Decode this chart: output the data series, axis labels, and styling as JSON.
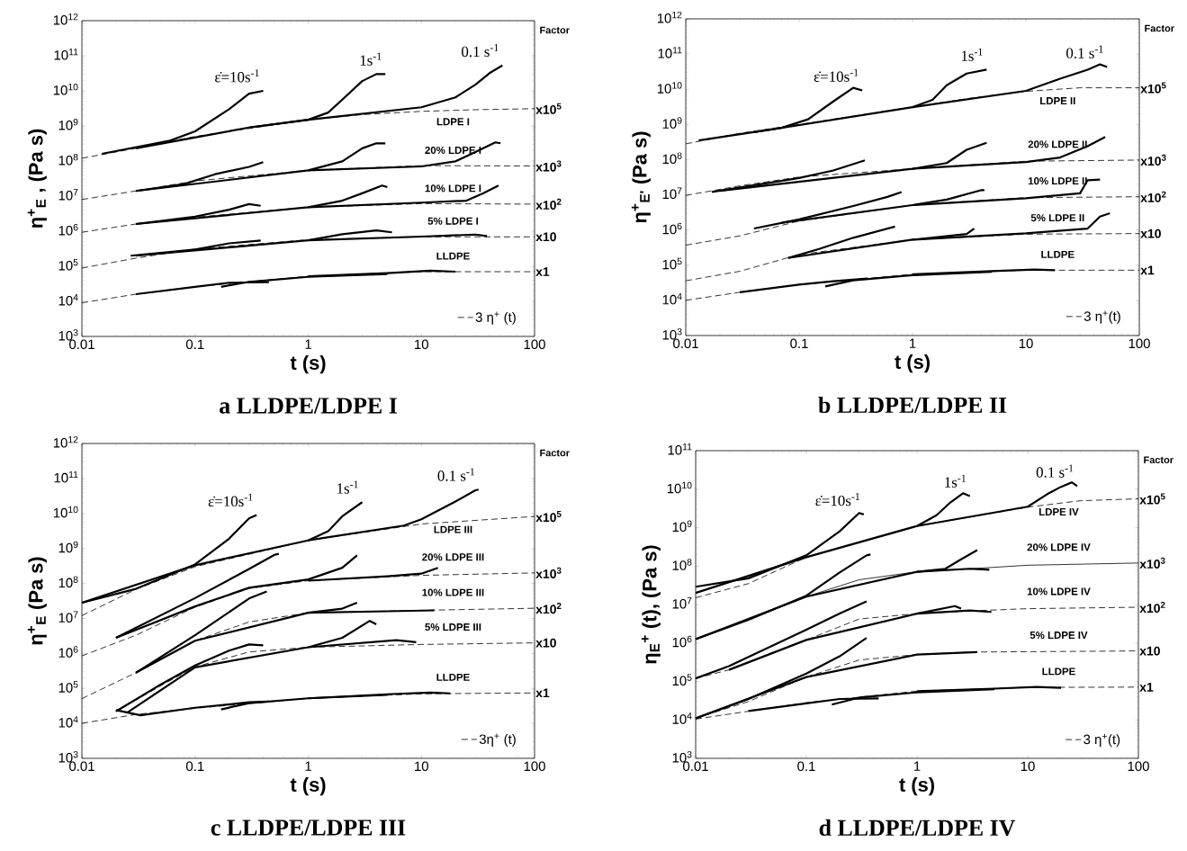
{
  "chart_data": [
    {
      "type": "line",
      "color": "#000000",
      "log": "xy",
      "legend": "bottom right",
      "title": "a  LLDPE/LDPE I",
      "xlabel": "t (s)",
      "ylabel": "η$^{+}$$_{E}$ , (Pa s)",
      "xlim": [
        0.01,
        100
      ],
      "ylim": [
        1000.0,
        1000000000000.0
      ],
      "xticks": [
        0.01,
        0.1,
        1,
        10,
        100
      ],
      "yticks": [
        {
          "value": 1000.0,
          "label": "10$^{3}$"
        },
        {
          "value": 10000.0,
          "label": "10$^{4}$"
        },
        {
          "value": 100000.0,
          "label": "10$^{5}$"
        },
        {
          "value": 1000000.0,
          "label": "10$^{6}$"
        },
        {
          "value": 10000000.0,
          "label": "10$^{7}$"
        },
        {
          "value": 100000000.0,
          "label": "10$^{8}$"
        },
        {
          "value": 1000000000.0,
          "label": "10$^{9}$"
        },
        {
          "value": 10000000000.0,
          "label": "10$^{10}$"
        },
        {
          "value": 100000000000.0,
          "label": "10$^{11}$"
        },
        {
          "value": 1000000000000.0,
          "label": "10$^{12}$"
        }
      ],
      "series": [
        {
          "name": "3 η$^{+}$ (t)",
          "line_style": "dashed",
          "x": [
            0.01,
            0.03,
            0.1,
            1,
            3,
            10,
            30,
            100
          ],
          "values": [
            120000000.0,
            230000000.0,
            500000000.0,
            1500000000.0,
            2100000000.0,
            2600000000.0,
            2900000000.0,
            3100000000.0
          ]
        },
        {
          "x": [
            0.015,
            0.06,
            0.1,
            0.2,
            0.3,
            0.4
          ],
          "values": [
            160000000.0,
            380000000.0,
            700000000.0,
            3000000000.0,
            8300000000.0,
            10000000000.0
          ]
        },
        {
          "x": [
            0.03,
            0.3,
            1,
            1.5,
            2,
            3,
            4,
            4.8
          ],
          "values": [
            230000000.0,
            900000000.0,
            1500000000.0,
            2400000000.0,
            5600000000.0,
            19000000000.0,
            30000000000.0,
            30000000000.0
          ]
        },
        {
          "x": [
            0.3,
            1,
            10,
            20,
            30,
            40,
            52
          ],
          "values": [
            900000000.0,
            1500000000.0,
            3400000000.0,
            6500000000.0,
            15000000000.0,
            32000000000.0,
            53000000000.0
          ]
        },
        {
          "line_style": "dashed",
          "x": [
            0.01,
            0.03,
            0.1,
            1,
            10,
            100
          ],
          "values": [
            8000000.0,
            14000000.0,
            27000000.0,
            54000000.0,
            74000000.0,
            72000000.0
          ]
        },
        {
          "x": [
            0.03,
            0.08,
            0.15,
            0.3,
            0.4
          ],
          "values": [
            14000000.0,
            22000000.0,
            42000000.0,
            68000000.0,
            93000000.0
          ]
        },
        {
          "x": [
            0.03,
            1,
            2,
            3,
            4,
            4.8
          ],
          "values": [
            14000000.0,
            54000000.0,
            98000000.0,
            230000000.0,
            320000000.0,
            320000000.0
          ]
        },
        {
          "x": [
            1,
            10,
            20,
            30,
            45,
            50
          ],
          "values": [
            54000000.0,
            70000000.0,
            98000000.0,
            180000000.0,
            340000000.0,
            320000000.0
          ]
        },
        {
          "line_style": "dashed",
          "x": [
            0.01,
            0.03,
            0.1,
            1,
            10,
            100
          ],
          "values": [
            930000.0,
            1600000.0,
            2500000.0,
            4800000.0,
            6100000.0,
            5900000.0
          ]
        },
        {
          "x": [
            0.03,
            0.1,
            0.2,
            0.3,
            0.38
          ],
          "values": [
            1600000.0,
            2600000.0,
            4100000.0,
            5900000.0,
            5300000.0
          ]
        },
        {
          "x": [
            0.03,
            1,
            2,
            3,
            4.5,
            5
          ],
          "values": [
            1600000.0,
            4800000.0,
            7400000.0,
            12000000.0,
            20000000.0,
            18000000.0
          ]
        },
        {
          "x": [
            1,
            10,
            25,
            35,
            48
          ],
          "values": [
            4800000.0,
            6500000.0,
            7400000.0,
            12000000.0,
            20000000.0
          ]
        },
        {
          "line_style": "dashed",
          "x": [
            0.01,
            0.03,
            0.1,
            1,
            10,
            100
          ],
          "values": [
            89000.0,
            170000.0,
            310000.0,
            570000.0,
            690000.0,
            690000.0
          ]
        },
        {
          "x": [
            0.027,
            0.1,
            0.2,
            0.38
          ],
          "values": [
            200000.0,
            300000.0,
            450000.0,
            540000.0
          ]
        },
        {
          "x": [
            0.03,
            1,
            2,
            4,
            5.5
          ],
          "values": [
            200000.0,
            550000.0,
            820000.0,
            1050000.0,
            930000.0
          ]
        },
        {
          "x": [
            1,
            10,
            30,
            38
          ],
          "values": [
            550000.0,
            700000.0,
            800000.0,
            730000.0
          ]
        },
        {
          "line_style": "dashed",
          "x": [
            0.01,
            0.03,
            0.1,
            1,
            10,
            100
          ],
          "values": [
            9100.0,
            16000.0,
            26000.0,
            52000.0,
            70000.0,
            70000.0
          ]
        },
        {
          "x": [
            0.03,
            0.1,
            0.2,
            0.45
          ],
          "values": [
            16000.0,
            26000.0,
            34000.0,
            35000.0
          ]
        },
        {
          "x": [
            0.17,
            0.3,
            1,
            5
          ],
          "values": [
            26000.0,
            36000.0,
            50000.0,
            60000.0
          ]
        },
        {
          "x": [
            1,
            5,
            12,
            20
          ],
          "values": [
            52000.0,
            64000.0,
            75000.0,
            70000.0
          ]
        }
      ],
      "annotations": [
        "Factor",
        "ε̇=10s$^{-1}$",
        "1s$^{-1}$",
        "0.1 s$^{-1}$",
        "LDPE I",
        "20% LDPE I",
        "10% LDPE I",
        "5% LDPE I",
        "LLDPE",
        "x10$^{5}$",
        "x10$^{3}$",
        "x10$^{2}$",
        "x10",
        "x1"
      ]
    },
    {
      "type": "line",
      "color": "#000000",
      "log": "xy",
      "legend": "bottom right",
      "title": "b  LLDPE/LDPE II",
      "xlabel": "t (s)",
      "ylabel": "η$^{+}$$_{E'}$ (Pa s)",
      "xlim": [
        0.01,
        100
      ],
      "ylim": [
        1000.0,
        1000000000000.0
      ],
      "xticks": [
        0.01,
        0.1,
        1,
        10,
        100
      ],
      "yticks": [
        {
          "value": 1000.0,
          "label": "10$^{3}$"
        },
        {
          "value": 10000.0,
          "label": "10$^{4}$"
        },
        {
          "value": 100000.0,
          "label": "10$^{5}$"
        },
        {
          "value": 1000000.0,
          "label": "10$^{6}$"
        },
        {
          "value": 10000000.0,
          "label": "10$^{7}$"
        },
        {
          "value": 100000000.0,
          "label": "10$^{8}$"
        },
        {
          "value": 1000000000.0,
          "label": "10$^{9}$"
        },
        {
          "value": 10000000000.0,
          "label": "10$^{10}$"
        },
        {
          "value": 100000000000.0,
          "label": "10$^{11}$"
        },
        {
          "value": 1000000000000.0,
          "label": "10$^{12}$"
        }
      ],
      "series": [
        {
          "name": "3 η$^{+}$(t)",
          "line_style": "dashed",
          "x": [
            0.01,
            0.03,
            0.1,
            1,
            3,
            10,
            30,
            100
          ],
          "values": [
            280000000.0,
            560000000.0,
            1000000000.0,
            3100000000.0,
            5400000000.0,
            8700000000.0,
            11000000000.0,
            11000000000.0
          ]
        },
        {
          "x": [
            0.013,
            0.07,
            0.12,
            0.2,
            0.3,
            0.36
          ],
          "values": [
            350000000.0,
            800000000.0,
            1400000000.0,
            4500000000.0,
            11000000000.0,
            9300000000.0
          ]
        },
        {
          "x": [
            0.04,
            1,
            1.5,
            2,
            3,
            4.5
          ],
          "values": [
            600000000.0,
            3100000000.0,
            5000000000.0,
            13000000000.0,
            28000000000.0,
            36000000000.0
          ]
        },
        {
          "x": [
            1,
            10,
            20,
            35,
            45,
            52
          ],
          "values": [
            3100000000.0,
            9000000000.0,
            20000000000.0,
            36000000000.0,
            51000000000.0,
            43000000000.0
          ]
        },
        {
          "line_style": "dashed",
          "x": [
            0.01,
            0.03,
            0.1,
            1,
            10,
            100
          ],
          "values": [
            9600000.0,
            18000000.0,
            32000000.0,
            55000000.0,
            90000000.0,
            97000000.0
          ]
        },
        {
          "x": [
            0.017,
            0.1,
            0.2,
            0.38
          ],
          "values": [
            12000000.0,
            30000000.0,
            49000000.0,
            95000000.0
          ]
        },
        {
          "x": [
            0.02,
            1,
            2,
            3,
            4.5
          ],
          "values": [
            13000000.0,
            55000000.0,
            80000000.0,
            190000000.0,
            300000000.0
          ]
        },
        {
          "x": [
            1,
            10,
            20,
            35,
            50
          ],
          "values": [
            55000000.0,
            85000000.0,
            115000000.0,
            240000000.0,
            440000000.0
          ]
        },
        {
          "line_style": "dashed",
          "x": [
            0.01,
            0.03,
            0.1,
            1,
            10,
            100
          ],
          "values": [
            370000.0,
            680000.0,
            1800000.0,
            5100000.0,
            8300000.0,
            8800000.0
          ]
        },
        {
          "x": [
            0.04,
            0.1,
            0.3,
            0.6,
            0.8
          ],
          "values": [
            1100000.0,
            2000000.0,
            4800000.0,
            8700000.0,
            12000000.0
          ]
        },
        {
          "x": [
            0.07,
            1,
            2,
            4,
            4.3
          ],
          "values": [
            1600000.0,
            5100000.0,
            7300000.0,
            13500000.0,
            13500000.0
          ]
        },
        {
          "x": [
            1,
            10,
            30,
            35,
            45
          ],
          "values": [
            5100000.0,
            8000000.0,
            11000000.0,
            26000000.0,
            27000000.0
          ]
        },
        {
          "line_style": "dashed",
          "x": [
            0.01,
            0.03,
            0.1,
            1,
            10,
            100
          ],
          "values": [
            36000.0,
            67000.0,
            200000.0,
            530000.0,
            760000.0,
            790000.0
          ]
        },
        {
          "x": [
            0.08,
            0.15,
            0.3,
            0.7
          ],
          "values": [
            160000.0,
            290000.0,
            600000.0,
            1250000.0
          ]
        },
        {
          "x": [
            0.08,
            1,
            3,
            3.5
          ],
          "values": [
            160000.0,
            530000.0,
            770000.0,
            1100000.0
          ]
        },
        {
          "x": [
            1,
            10,
            35,
            45,
            55
          ],
          "values": [
            530000.0,
            800000.0,
            1100000.0,
            2400000.0,
            3000000.0
          ]
        },
        {
          "line_style": "dashed",
          "x": [
            0.01,
            0.03,
            0.1,
            1,
            10,
            100
          ],
          "values": [
            10000.0,
            17000.0,
            28000.0,
            55000.0,
            72000.0,
            72000.0
          ]
        },
        {
          "x": [
            0.03,
            0.1,
            0.2,
            0.4
          ],
          "values": [
            17000.0,
            28000.0,
            35000.0,
            42000.0
          ]
        },
        {
          "x": [
            0.17,
            0.3,
            1,
            5
          ],
          "values": [
            25000.0,
            37000.0,
            52000.0,
            65000.0
          ]
        },
        {
          "x": [
            1,
            5,
            12,
            18
          ],
          "values": [
            55000.0,
            68000.0,
            75000.0,
            72000.0
          ]
        }
      ],
      "annotations": [
        "Factor",
        "ε̇=10s$^{-1}$",
        "1s$^{-1}$",
        "0.1 s$^{-1}$",
        "LDPE II",
        "20% LDPE II",
        "10% LDPE II",
        "5% LDPE II",
        "LLDPE",
        "x10$^{5}$",
        "x10$^{3}$",
        "x10$^{2}$",
        "x10",
        "x1"
      ]
    },
    {
      "type": "line",
      "color": "#000000",
      "log": "xy",
      "legend": "bottom right",
      "title": "c  LLDPE/LDPE III",
      "xlabel": "t (s)",
      "ylabel": "η$^{+}$$_{E}$ (Pa s)",
      "xlim": [
        0.01,
        100
      ],
      "ylim": [
        1000.0,
        1000000000000.0
      ],
      "xticks": [
        0.01,
        0.1,
        1,
        10,
        100
      ],
      "yticks": [
        {
          "value": 1000.0,
          "label": "10$^{3}$"
        },
        {
          "value": 10000.0,
          "label": "10$^{4}$"
        },
        {
          "value": 100000.0,
          "label": "10$^{5}$"
        },
        {
          "value": 1000000.0,
          "label": "10$^{6}$"
        },
        {
          "value": 10000000.0,
          "label": "10$^{7}$"
        },
        {
          "value": 100000000.0,
          "label": "10$^{8}$"
        },
        {
          "value": 1000000000.0,
          "label": "10$^{9}$"
        },
        {
          "value": 10000000000.0,
          "label": "10$^{10}$"
        },
        {
          "value": 100000000000.0,
          "label": "10$^{11}$"
        },
        {
          "value": 1000000000000.0,
          "label": "10$^{12}$"
        }
      ],
      "series": [
        {
          "name": "3η$^{+}$ (t)",
          "line_style": "dashed",
          "x": [
            0.01,
            0.03,
            0.1,
            1,
            10,
            100
          ],
          "values": [
            12000000.0,
            68000000.0,
            300000000.0,
            1700000000.0,
            5000000000.0,
            8200000000.0
          ]
        },
        {
          "x": [
            0.01,
            0.03,
            0.1,
            0.2,
            0.3,
            0.35
          ],
          "values": [
            28000000.0,
            70000000.0,
            350000000.0,
            1900000000.0,
            7200000000.0,
            9000000000.0
          ]
        },
        {
          "x": [
            0.01,
            0.1,
            1,
            1.5,
            2,
            3
          ],
          "values": [
            28000000.0,
            330000000.0,
            1700000000.0,
            3100000000.0,
            8300000000.0,
            21000000000.0
          ]
        },
        {
          "x": [
            1,
            7,
            10,
            20,
            30,
            32
          ],
          "values": [
            1700000000.0,
            4500000000.0,
            6800000000.0,
            22000000000.0,
            46000000000.0,
            48000000000.0
          ]
        },
        {
          "line_style": "dashed",
          "x": [
            0.01,
            0.03,
            0.1,
            0.3,
            1,
            10,
            100
          ],
          "values": [
            850000.0,
            3300000.0,
            21000000.0,
            72000000.0,
            120000000.0,
            170000000.0,
            200000000.0
          ]
        },
        {
          "x": [
            0.02,
            0.1,
            0.3,
            0.5,
            0.55
          ],
          "values": [
            2800000.0,
            38000000.0,
            260000000.0,
            650000000.0,
            700000000.0
          ]
        },
        {
          "x": [
            0.02,
            0.1,
            0.3,
            1,
            2,
            2.7
          ],
          "values": [
            2800000.0,
            22000000.0,
            75000000.0,
            130000000.0,
            280000000.0,
            630000000.0
          ]
        },
        {
          "x": [
            1,
            5,
            10,
            14
          ],
          "values": [
            120000000.0,
            160000000.0,
            190000000.0,
            280000000.0
          ]
        },
        {
          "line_style": "dashed",
          "x": [
            0.01,
            0.03,
            0.1,
            0.3,
            1,
            10,
            100
          ],
          "values": [
            51000.0,
            280000.0,
            2300000.0,
            7900000.0,
            14500000.0,
            17000000.0,
            19500000.0
          ]
        },
        {
          "x": [
            0.03,
            0.1,
            0.3,
            0.43
          ],
          "values": [
            280000.0,
            3300000.0,
            37000000.0,
            59000000.0
          ]
        },
        {
          "x": [
            0.03,
            0.1,
            1,
            2,
            2.7
          ],
          "values": [
            280000.0,
            2300000.0,
            14500000.0,
            19000000.0,
            28000000.0
          ]
        },
        {
          "x": [
            1,
            5,
            13
          ],
          "values": [
            14500000.0,
            16000000.0,
            17000000.0
          ]
        },
        {
          "line_style": "dashed",
          "x": [
            0.02,
            0.05,
            0.1,
            0.3,
            1,
            10,
            100
          ],
          "values": [
            22000.0,
            120000.0,
            410000.0,
            1100000.0,
            1500000.0,
            1800000.0,
            2000000.0
          ]
        },
        {
          "x": [
            0.02,
            0.05,
            0.1,
            0.2,
            0.3,
            0.4
          ],
          "values": [
            22000.0,
            130000.0,
            450000.0,
            1200000.0,
            1800000.0,
            1700000.0
          ]
        },
        {
          "x": [
            0.025,
            0.1,
            1,
            2,
            3.5,
            4
          ],
          "values": [
            20000.0,
            400000.0,
            1500000.0,
            2800000.0,
            8500000.0,
            6800000.0
          ]
        },
        {
          "x": [
            1,
            6,
            9
          ],
          "values": [
            1500000.0,
            2400000.0,
            2100000.0
          ]
        },
        {
          "line_style": "dashed",
          "x": [
            0.01,
            0.03,
            0.1,
            1,
            10,
            100
          ],
          "values": [
            10000.0,
            18000.0,
            27000.0,
            52000.0,
            70000.0,
            74000.0
          ]
        },
        {
          "x": [
            0.02,
            0.033,
            0.1,
            0.3,
            0.45
          ],
          "values": [
            24000.0,
            17000.0,
            28000.0,
            40000.0,
            42000.0
          ]
        },
        {
          "x": [
            0.17,
            0.3,
            1,
            5
          ],
          "values": [
            25000.0,
            38000.0,
            52000.0,
            65000.0
          ]
        },
        {
          "x": [
            1,
            5,
            12,
            18
          ],
          "values": [
            52000.0,
            68000.0,
            76000.0,
            72000.0
          ]
        }
      ],
      "annotations": [
        "Factor",
        "ε̇=10s$^{-1}$",
        "1s$^{-1}$",
        "0.1 s$^{-1}$",
        "LDPE III",
        "20% LDPE III",
        "10% LDPE III",
        "5% LDPE III",
        "LLDPE",
        "x10$^{5}$",
        "x10$^{3}$",
        "x10$^{2}$",
        "x10",
        "x1"
      ]
    },
    {
      "type": "line",
      "color": "#000000",
      "log": "xy",
      "legend": "bottom right",
      "title": "d  LLDPE/LDPE IV",
      "xlabel": "t (s)",
      "ylabel": "η$_{E}$$^{+}$ (t), (Pa s)",
      "xlim": [
        0.01,
        100
      ],
      "ylim": [
        1000.0,
        100000000000.0
      ],
      "xticks": [
        0.01,
        0.1,
        1,
        10,
        100
      ],
      "yticks": [
        {
          "value": 1000.0,
          "label": "10$^{3}$"
        },
        {
          "value": 10000.0,
          "label": "10$^{4}$"
        },
        {
          "value": 100000.0,
          "label": "10$^{5}$"
        },
        {
          "value": 1000000.0,
          "label": "10$^{6}$"
        },
        {
          "value": 10000000.0,
          "label": "10$^{7}$"
        },
        {
          "value": 100000000.0,
          "label": "10$^{8}$"
        },
        {
          "value": 1000000000.0,
          "label": "10$^{9}$"
        },
        {
          "value": 10000000000.0,
          "label": "10$^{10}$"
        },
        {
          "value": 100000000000.0,
          "label": "10$^{11}$"
        }
      ],
      "series": [
        {
          "name": "3 η$^{+}$(t)",
          "line_style": "dashed",
          "x": [
            0.01,
            0.03,
            0.1,
            1,
            10,
            30,
            100
          ],
          "values": [
            15000000.0,
            35000000.0,
            170000000.0,
            1100000000.0,
            3400000000.0,
            5000000000.0,
            5600000000.0
          ]
        },
        {
          "x": [
            0.01,
            0.03,
            0.1,
            0.2,
            0.3,
            0.33
          ],
          "values": [
            29000000.0,
            48000000.0,
            190000000.0,
            800000000.0,
            2400000000.0,
            2200000000.0
          ]
        },
        {
          "x": [
            0.01,
            0.1,
            1,
            1.5,
            2,
            2.6,
            3
          ],
          "values": [
            20000000.0,
            170000000.0,
            1100000000.0,
            2100000000.0,
            4500000000.0,
            7800000000.0,
            6600000000.0
          ]
        },
        {
          "x": [
            1,
            10,
            15,
            20,
            25,
            28
          ],
          "values": [
            1100000000.0,
            3500000000.0,
            7400000000.0,
            11500000000.0,
            15000000000.0,
            12000000000.0
          ]
        },
        {
          "line_style": "solid",
          "x": [
            0.01,
            0.03,
            0.1,
            0.3,
            1,
            3,
            10,
            100
          ],
          "values": [
            1260000.0,
            4200000.0,
            16000000.0,
            44000000.0,
            71000000.0,
            85000000.0,
            105000000.0,
            120000000.0
          ]
        },
        {
          "x": [
            0.01,
            0.03,
            0.1,
            0.2,
            0.35,
            0.38
          ],
          "values": [
            1260000.0,
            4000000.0,
            17000000.0,
            68000000.0,
            190000000.0,
            200000000.0
          ]
        },
        {
          "x": [
            0.01,
            0.1,
            1,
            1.8,
            2.5,
            3.5
          ],
          "values": [
            1260000.0,
            16000000.0,
            71000000.0,
            85000000.0,
            150000000.0,
            260000000.0
          ]
        },
        {
          "x": [
            1,
            3,
            4.5
          ],
          "values": [
            71000000.0,
            85000000.0,
            80000000.0
          ]
        },
        {
          "line_style": "dashed",
          "x": [
            0.01,
            0.02,
            0.1,
            0.3,
            1,
            3,
            10,
            100
          ],
          "values": [
            120000.0,
            200000.0,
            1200000.0,
            4200000.0,
            5800000.0,
            6800000.0,
            7800000.0,
            8500000.0
          ]
        },
        {
          "x": [
            0.01,
            0.02,
            0.1,
            0.2,
            0.35
          ],
          "values": [
            120000.0,
            250000.0,
            2200000.0,
            5800000.0,
            12000000.0
          ]
        },
        {
          "x": [
            0.02,
            0.1,
            1,
            2.2,
            2.5
          ],
          "values": [
            200000.0,
            1200000.0,
            5800000.0,
            9100000.0,
            7800000.0
          ]
        },
        {
          "x": [
            1,
            3,
            4.7
          ],
          "values": [
            5800000.0,
            7000000.0,
            6400000.0
          ]
        },
        {
          "line_style": "dashed",
          "x": [
            0.01,
            0.03,
            0.1,
            0.3,
            1,
            3,
            100
          ],
          "values": [
            11000.0,
            30000.0,
            130000.0,
            360000.0,
            500000.0,
            580000.0,
            620000.0
          ]
        },
        {
          "x": [
            0.01,
            0.03,
            0.1,
            0.2,
            0.35
          ],
          "values": [
            11000.0,
            35000.0,
            160000.0,
            450000.0,
            1350000.0
          ]
        },
        {
          "x": [
            0.01,
            0.1,
            1,
            3.5
          ],
          "values": [
            11000.0,
            130000.0,
            500000.0,
            580000.0
          ]
        },
        {
          "line_style": "dashed",
          "x": [
            0.01,
            0.1,
            1,
            10,
            100
          ],
          "values": [
            10500.0,
            28000.0,
            56000.0,
            70000.0,
            71000.0
          ]
        },
        {
          "x": [
            0.03,
            0.1,
            0.2,
            0.45
          ],
          "values": [
            17000.0,
            27000.0,
            35000.0,
            36000.0
          ]
        },
        {
          "x": [
            0.17,
            0.3,
            1,
            5
          ],
          "values": [
            25000.0,
            38000.0,
            52000.0,
            63000.0
          ]
        },
        {
          "x": [
            1,
            5,
            12,
            20
          ],
          "values": [
            56000.0,
            65000.0,
            72000.0,
            68000.0
          ]
        }
      ],
      "annotations": [
        "Factor",
        "ε̇=10s$^{-1}$",
        "1s$^{-1}$",
        "0.1 s$^{-1}$",
        "LDPE IV",
        "20% LDPE IV",
        "10% LDPE IV",
        "5% LDPE IV",
        "LLDPE",
        "x10$^{5}$",
        "x10$^{3}$",
        "x10$^{2}$",
        "x10",
        "x1"
      ]
    }
  ]
}
